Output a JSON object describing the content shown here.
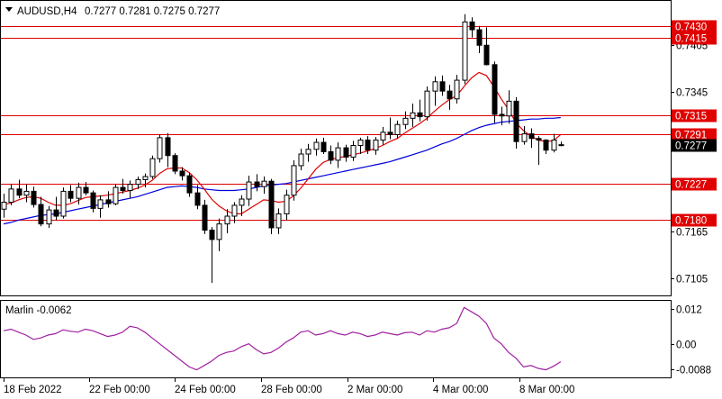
{
  "header": {
    "symbol": "AUDUSD,H4",
    "ohlc": "0.7277 0.7281 0.7275 0.7277"
  },
  "indicator": {
    "label": "Marlin -0.0062",
    "ticks": [
      "0.012",
      "0.00",
      "-0.0088"
    ]
  },
  "colors": {
    "level_line": "#e00000",
    "level_badge": "#e00000",
    "ma_fast": "#e00000",
    "ma_slow": "#0000dd",
    "oscillator": "#a020a0",
    "price_badge": "#000000"
  },
  "chart_data": {
    "type": "candlestick",
    "price_axis_ticks": [
      0.7405,
      0.7345,
      0.7165,
      0.7105
    ],
    "levels": [
      0.743,
      0.7415,
      0.7315,
      0.7291,
      0.7227,
      0.718
    ],
    "current_price": 0.7277,
    "time_labels": [
      "18 Feb 2022",
      "22 Feb 00:00",
      "24 Feb 00:00",
      "28 Feb 00:00",
      "2 Mar 00:00",
      "4 Mar 00:00",
      "8 Mar 00:00"
    ],
    "candles": [
      [
        0.7194,
        0.7214,
        0.7183,
        0.7203
      ],
      [
        0.7203,
        0.7226,
        0.7199,
        0.722
      ],
      [
        0.722,
        0.7232,
        0.7208,
        0.7212
      ],
      [
        0.7212,
        0.7226,
        0.7203,
        0.7217
      ],
      [
        0.7217,
        0.7223,
        0.7196,
        0.72
      ],
      [
        0.72,
        0.721,
        0.7172,
        0.7175
      ],
      [
        0.7175,
        0.7198,
        0.717,
        0.7193
      ],
      [
        0.7193,
        0.721,
        0.718,
        0.7185
      ],
      [
        0.7185,
        0.7222,
        0.7182,
        0.7217
      ],
      [
        0.7217,
        0.7225,
        0.7203,
        0.7208
      ],
      [
        0.7208,
        0.7228,
        0.72,
        0.7222
      ],
      [
        0.7222,
        0.7229,
        0.7212,
        0.7215
      ],
      [
        0.7215,
        0.7218,
        0.719,
        0.7195
      ],
      [
        0.7195,
        0.7212,
        0.7183,
        0.7206
      ],
      [
        0.7206,
        0.7217,
        0.7196,
        0.7201
      ],
      [
        0.7201,
        0.7226,
        0.7199,
        0.7222
      ],
      [
        0.7222,
        0.7233,
        0.7214,
        0.7218
      ],
      [
        0.7218,
        0.7231,
        0.7208,
        0.7226
      ],
      [
        0.7226,
        0.7236,
        0.722,
        0.7232
      ],
      [
        0.7232,
        0.724,
        0.7222,
        0.7236
      ],
      [
        0.7236,
        0.7263,
        0.7233,
        0.7259
      ],
      [
        0.7259,
        0.729,
        0.7254,
        0.7286
      ],
      [
        0.7286,
        0.7292,
        0.7248,
        0.7263
      ],
      [
        0.7263,
        0.7266,
        0.7239,
        0.7243
      ],
      [
        0.7243,
        0.7248,
        0.7231,
        0.7237
      ],
      [
        0.7237,
        0.7241,
        0.721,
        0.7215
      ],
      [
        0.7215,
        0.7225,
        0.7194,
        0.7199
      ],
      [
        0.7199,
        0.7206,
        0.7162,
        0.7167
      ],
      [
        0.7167,
        0.7171,
        0.7099,
        0.7155
      ],
      [
        0.7155,
        0.7182,
        0.714,
        0.7175
      ],
      [
        0.7175,
        0.7194,
        0.7163,
        0.7185
      ],
      [
        0.7185,
        0.7203,
        0.7176,
        0.7199
      ],
      [
        0.7199,
        0.7212,
        0.7185,
        0.7207
      ],
      [
        0.7207,
        0.7237,
        0.7198,
        0.7229
      ],
      [
        0.7229,
        0.7239,
        0.7217,
        0.7223
      ],
      [
        0.7223,
        0.7236,
        0.7214,
        0.723
      ],
      [
        0.723,
        0.7233,
        0.7162,
        0.717
      ],
      [
        0.717,
        0.7195,
        0.7162,
        0.7188
      ],
      [
        0.7188,
        0.7219,
        0.718,
        0.7212
      ],
      [
        0.7212,
        0.7257,
        0.7205,
        0.725
      ],
      [
        0.725,
        0.7272,
        0.7244,
        0.7265
      ],
      [
        0.7265,
        0.7278,
        0.7255,
        0.7271
      ],
      [
        0.7271,
        0.7285,
        0.7263,
        0.728
      ],
      [
        0.728,
        0.7286,
        0.7265,
        0.7268
      ],
      [
        0.7268,
        0.7276,
        0.7252,
        0.7257
      ],
      [
        0.7257,
        0.728,
        0.7247,
        0.7273
      ],
      [
        0.7273,
        0.7277,
        0.7255,
        0.7261
      ],
      [
        0.7261,
        0.7282,
        0.7256,
        0.7276
      ],
      [
        0.7276,
        0.7286,
        0.7265,
        0.7283
      ],
      [
        0.7283,
        0.7288,
        0.7265,
        0.727
      ],
      [
        0.727,
        0.7287,
        0.7264,
        0.7283
      ],
      [
        0.7283,
        0.73,
        0.7277,
        0.7293
      ],
      [
        0.7293,
        0.7312,
        0.7284,
        0.729
      ],
      [
        0.729,
        0.7308,
        0.7285,
        0.7303
      ],
      [
        0.7303,
        0.732,
        0.7297,
        0.7311
      ],
      [
        0.7311,
        0.733,
        0.73,
        0.7318
      ],
      [
        0.7318,
        0.7335,
        0.7307,
        0.7313
      ],
      [
        0.7313,
        0.7352,
        0.7308,
        0.7346
      ],
      [
        0.7346,
        0.7365,
        0.7327,
        0.7358
      ],
      [
        0.7358,
        0.7366,
        0.734,
        0.7346
      ],
      [
        0.7346,
        0.7354,
        0.7322,
        0.7336
      ],
      [
        0.7336,
        0.7367,
        0.733,
        0.736
      ],
      [
        0.736,
        0.7445,
        0.7355,
        0.7435
      ],
      [
        0.7435,
        0.7441,
        0.7415,
        0.7425
      ],
      [
        0.7425,
        0.743,
        0.7395,
        0.7405
      ],
      [
        0.7405,
        0.7428,
        0.7379,
        0.738
      ],
      [
        0.738,
        0.7384,
        0.7305,
        0.7316
      ],
      [
        0.7316,
        0.7326,
        0.7302,
        0.7314
      ],
      [
        0.7314,
        0.7347,
        0.7304,
        0.7333
      ],
      [
        0.7333,
        0.7338,
        0.7272,
        0.7281
      ],
      [
        0.7281,
        0.7301,
        0.7277,
        0.7291
      ],
      [
        0.7291,
        0.7298,
        0.7273,
        0.7285
      ],
      [
        0.7285,
        0.7288,
        0.7251,
        0.7283
      ],
      [
        0.7283,
        0.7284,
        0.7265,
        0.727
      ],
      [
        0.727,
        0.7291,
        0.7267,
        0.7283
      ],
      [
        0.7277,
        0.7281,
        0.7275,
        0.7277
      ]
    ],
    "ma_fast": [
      0.72,
      0.7202,
      0.7206,
      0.7209,
      0.721,
      0.7208,
      0.7203,
      0.7199,
      0.7199,
      0.7201,
      0.7205,
      0.7209,
      0.721,
      0.7211,
      0.7212,
      0.7214,
      0.7216,
      0.7218,
      0.7221,
      0.7225,
      0.7231,
      0.724,
      0.7246,
      0.7247,
      0.7247,
      0.7241,
      0.7232,
      0.722,
      0.7207,
      0.7198,
      0.7192,
      0.7188,
      0.7188,
      0.7194,
      0.72,
      0.7206,
      0.7205,
      0.7203,
      0.7204,
      0.7211,
      0.7221,
      0.7233,
      0.7245,
      0.7254,
      0.7258,
      0.726,
      0.7262,
      0.7264,
      0.7266,
      0.7269,
      0.7272,
      0.7276,
      0.7281,
      0.7285,
      0.7292,
      0.7298,
      0.7304,
      0.7311,
      0.732,
      0.7328,
      0.7335,
      0.734,
      0.7352,
      0.7363,
      0.737,
      0.7366,
      0.7352,
      0.7336,
      0.7322,
      0.7305,
      0.7295,
      0.7288,
      0.7283,
      0.7281,
      0.7282,
      0.729
    ],
    "ma_slow": [
      0.7175,
      0.7177,
      0.718,
      0.7182,
      0.7184,
      0.7186,
      0.7187,
      0.7188,
      0.719,
      0.7192,
      0.7194,
      0.7196,
      0.7198,
      0.72,
      0.7202,
      0.7204,
      0.7206,
      0.7208,
      0.721,
      0.7213,
      0.7216,
      0.7219,
      0.7222,
      0.7223,
      0.7224,
      0.7223,
      0.7222,
      0.722,
      0.7219,
      0.7218,
      0.7218,
      0.7218,
      0.7219,
      0.722,
      0.7222,
      0.7224,
      0.7225,
      0.7226,
      0.7227,
      0.7229,
      0.7231,
      0.7233,
      0.7235,
      0.7237,
      0.7239,
      0.7241,
      0.7243,
      0.7245,
      0.7247,
      0.7249,
      0.7251,
      0.7253,
      0.7255,
      0.7258,
      0.7261,
      0.7264,
      0.7267,
      0.727,
      0.7274,
      0.7278,
      0.7281,
      0.7285,
      0.729,
      0.7295,
      0.7299,
      0.7302,
      0.7304,
      0.7306,
      0.7307,
      0.7308,
      0.7309,
      0.731,
      0.731,
      0.7311,
      0.7311,
      0.7312
    ],
    "oscillator": [
      0.0045,
      0.005,
      0.004,
      0.003,
      0.0015,
      0.002,
      0.003,
      0.0035,
      0.0048,
      0.0043,
      0.004,
      0.005,
      0.0045,
      0.0035,
      0.0025,
      0.003,
      0.004,
      0.006,
      0.0055,
      0.004,
      0.002,
      0.0,
      -0.002,
      -0.004,
      -0.006,
      -0.008,
      -0.009,
      -0.0075,
      -0.006,
      -0.004,
      -0.003,
      -0.0025,
      -0.001,
      0.0,
      -0.002,
      -0.0035,
      -0.003,
      -0.0015,
      0.0005,
      0.002,
      0.004,
      0.0045,
      0.003,
      0.0035,
      0.0045,
      0.0035,
      0.003,
      0.004,
      0.0035,
      0.0025,
      0.003,
      0.004,
      0.0035,
      0.003,
      0.0038,
      0.004,
      0.003,
      0.0045,
      0.004,
      0.005,
      0.0055,
      0.007,
      0.0125,
      0.011,
      0.0095,
      0.007,
      0.002,
      0.0,
      -0.003,
      -0.005,
      -0.008,
      -0.0075,
      -0.0085,
      -0.009,
      -0.0078,
      -0.0062
    ]
  }
}
